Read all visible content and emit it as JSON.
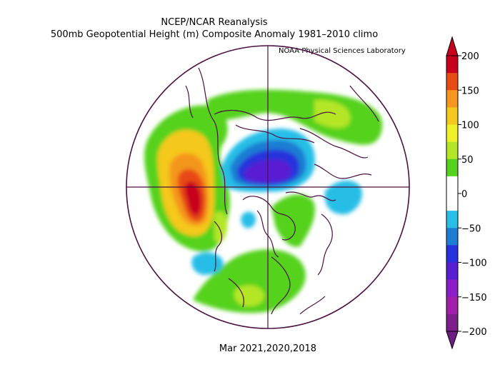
{
  "header": {
    "title": "NCEP/NCAR Reanalysis",
    "subtitle": "500mb Geopotential Height (m) Composite Anomaly 1981–2010 climo",
    "credit": "NOAA Physical Sciences Laboratory"
  },
  "footer": {
    "caption": "Mar 2021,2020,2018"
  },
  "colorbar": {
    "ticks": [
      "200",
      "150",
      "100",
      "50",
      "0",
      "−50",
      "−100",
      "−150",
      "−200"
    ],
    "colors": [
      "#c8001e",
      "#e84a14",
      "#f5961e",
      "#f5c81e",
      "#f0f028",
      "#b4e628",
      "#55d21e",
      "#ffffff",
      "#ffffff",
      "#28bee6",
      "#1e7dd2",
      "#2832dc",
      "#5a1ed2",
      "#8c1ec8",
      "#a01eaa",
      "#7d1e8c"
    ],
    "arrow_top": "#c8001e",
    "arrow_bottom": "#6e1e82"
  }
}
